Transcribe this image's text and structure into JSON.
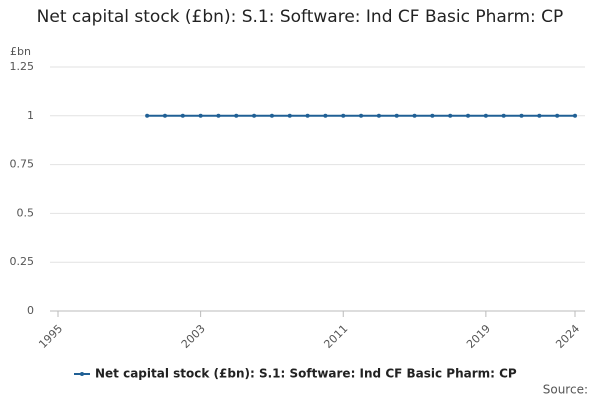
{
  "chart_data": {
    "type": "line",
    "title": "Net capital stock (£bn): S.1: Software: Ind CF Basic Pharm: CP",
    "y_unit": "£bn",
    "source": "Source:",
    "x": [
      2000,
      2001,
      2002,
      2003,
      2004,
      2005,
      2006,
      2007,
      2008,
      2009,
      2010,
      2011,
      2012,
      2013,
      2014,
      2015,
      2016,
      2017,
      2018,
      2019,
      2020,
      2021,
      2022,
      2023,
      2024
    ],
    "series": [
      {
        "name": "Net capital stock (£bn): S.1: Software: Ind CF Basic Pharm: CP",
        "color": "#206095",
        "values": [
          1,
          1,
          1,
          1,
          1,
          1,
          1,
          1,
          1,
          1,
          1,
          1,
          1,
          1,
          1,
          1,
          1,
          1,
          1,
          1,
          1,
          1,
          1,
          1,
          1
        ]
      }
    ],
    "xlim": [
      1995,
      2024
    ],
    "xticks": [
      1995,
      2003,
      2011,
      2019,
      2024
    ],
    "ylim": [
      0,
      1.25
    ],
    "yticks": [
      0,
      0.25,
      0.5,
      0.75,
      1,
      1.25
    ],
    "grid": true
  }
}
